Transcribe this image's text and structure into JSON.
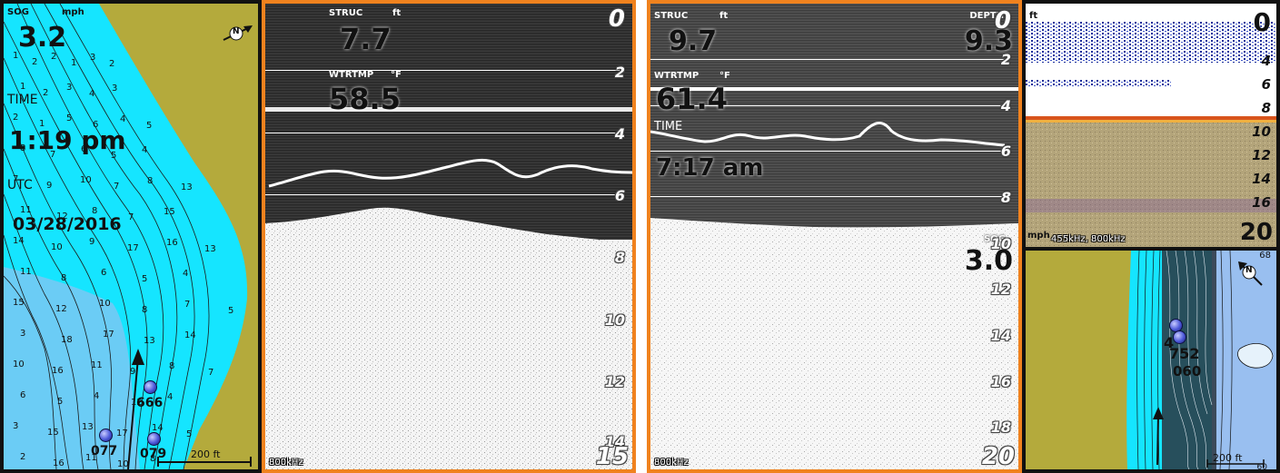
{
  "chart_left": {
    "sog_label": "SOG",
    "sog_unit": "mph",
    "sog_value": "3.2",
    "time_label": "TIME",
    "time_value": "1:19 pm",
    "utc_label": "UTC",
    "date_value": "03/28/2016",
    "north_label": "N",
    "scale_label": "200 ft",
    "waypoints": [
      "666",
      "077",
      "079"
    ],
    "depth_numbers": [
      "1",
      "2",
      "2",
      "1",
      "3",
      "2",
      "1",
      "2",
      "3",
      "4",
      "3",
      "2",
      "1",
      "5",
      "6",
      "4",
      "5",
      "8",
      "7",
      "6",
      "5",
      "4",
      "7",
      "9",
      "10",
      "7",
      "8",
      "13",
      "11",
      "12",
      "8",
      "7",
      "15",
      "14",
      "10",
      "9",
      "17",
      "16",
      "13",
      "11",
      "8",
      "6",
      "5",
      "4",
      "15",
      "12",
      "10",
      "8",
      "7",
      "5",
      "3",
      "18",
      "17",
      "13",
      "14",
      "10",
      "16",
      "11",
      "9",
      "8",
      "7",
      "6",
      "5",
      "4",
      "12",
      "4",
      "3",
      "15",
      "13",
      "17",
      "14",
      "5",
      "2",
      "16",
      "11",
      "10",
      "8",
      "3",
      "2",
      "15",
      "11",
      "5",
      "3",
      "8",
      "7",
      "5"
    ]
  },
  "sonar_left": {
    "struc_label": "STRUC",
    "unit": "ft",
    "struc_value": "7.7",
    "wtrtmp_label": "WTRTMP",
    "temp_unit": "°F",
    "wtrtmp_value": "58.5",
    "freq_label": "800kHz",
    "scale_top": "0",
    "scale_bottom": "15",
    "ticks": [
      "2",
      "4",
      "6",
      "8",
      "10",
      "12",
      "14"
    ]
  },
  "sonar_right": {
    "struc_label": "STRUC",
    "unit": "ft",
    "struc_value": "9.7",
    "depth_label": "DEPTH",
    "depth_value": "9.3",
    "wtrtmp_label": "WTRTMP",
    "temp_unit": "°F",
    "wtrtmp_value": "61.4",
    "time_label": "TIME",
    "time_value": "7:17 am",
    "sog_label": "SOG",
    "sog_value": "3.0",
    "freq_label": "800kHz",
    "scale_top": "0",
    "scale_bottom": "20",
    "ticks": [
      "2",
      "4",
      "6",
      "8",
      "10",
      "12",
      "14",
      "16",
      "18"
    ]
  },
  "sonar_color": {
    "unit": "ft",
    "scale_top": "0",
    "scale_bottom": "20",
    "ticks": [
      "4",
      "6",
      "8",
      "10",
      "12",
      "14",
      "16"
    ],
    "sog_unit": "mph",
    "freq_label": "455kHz, 800kHz"
  },
  "chart_right": {
    "north_label": "N",
    "scale_label": "200 ft",
    "waypoints": [
      "4",
      "752",
      "060"
    ],
    "corner_label": "68",
    "bottom_label": "60"
  },
  "colors": {
    "land": "#b4aa3c",
    "water_shallow": "#15e5ff",
    "water_deep": "#99bff0",
    "active_border": "#f0821e",
    "pane_border": "#111111"
  }
}
